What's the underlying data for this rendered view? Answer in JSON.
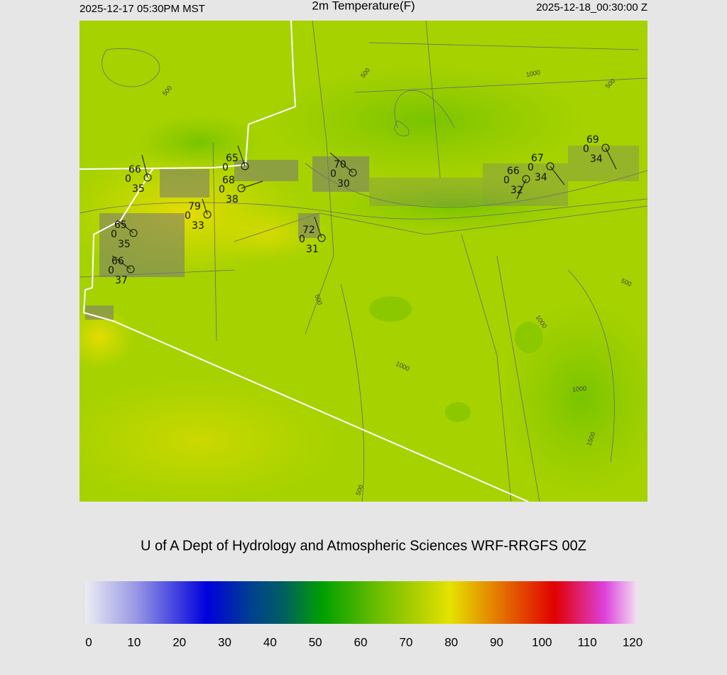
{
  "header": {
    "local_time": "2025-12-17 05:30PM MST",
    "title": "2m Temperature(F)",
    "utc_time": "2025-12-18_00:30:00 Z"
  },
  "stations": [
    {
      "temp": 66,
      "wind": 0,
      "dew": 35
    },
    {
      "temp": 65,
      "wind": 0
    },
    {
      "temp": 68,
      "wind": 0,
      "dew": 38
    },
    {
      "temp": 79,
      "wind": 0,
      "dew": 33
    },
    {
      "temp": 65,
      "wind": 0,
      "dew": 35
    },
    {
      "temp": 66,
      "wind": 0,
      "dew": 37
    },
    {
      "temp": 72,
      "wind": 0,
      "dew": 31
    },
    {
      "temp": 70,
      "wind": 0,
      "dew": 30
    },
    {
      "temp": 66,
      "wind": 0,
      "dew": 32
    },
    {
      "temp": 67,
      "wind": 0,
      "dew": 34
    },
    {
      "temp": 69,
      "wind": 0,
      "dew": 34
    }
  ],
  "contour_labels": [
    "500",
    "500",
    "1000",
    "500",
    "500",
    "500",
    "1000",
    "1000",
    "1000",
    "1500",
    "500"
  ],
  "credit": "U of A Dept of Hydrology and Atmospheric Sciences WRF-RRGFS 00Z",
  "colorbar": {
    "ticks": [
      0,
      10,
      20,
      30,
      40,
      50,
      60,
      70,
      80,
      90,
      100,
      110,
      120
    ]
  }
}
